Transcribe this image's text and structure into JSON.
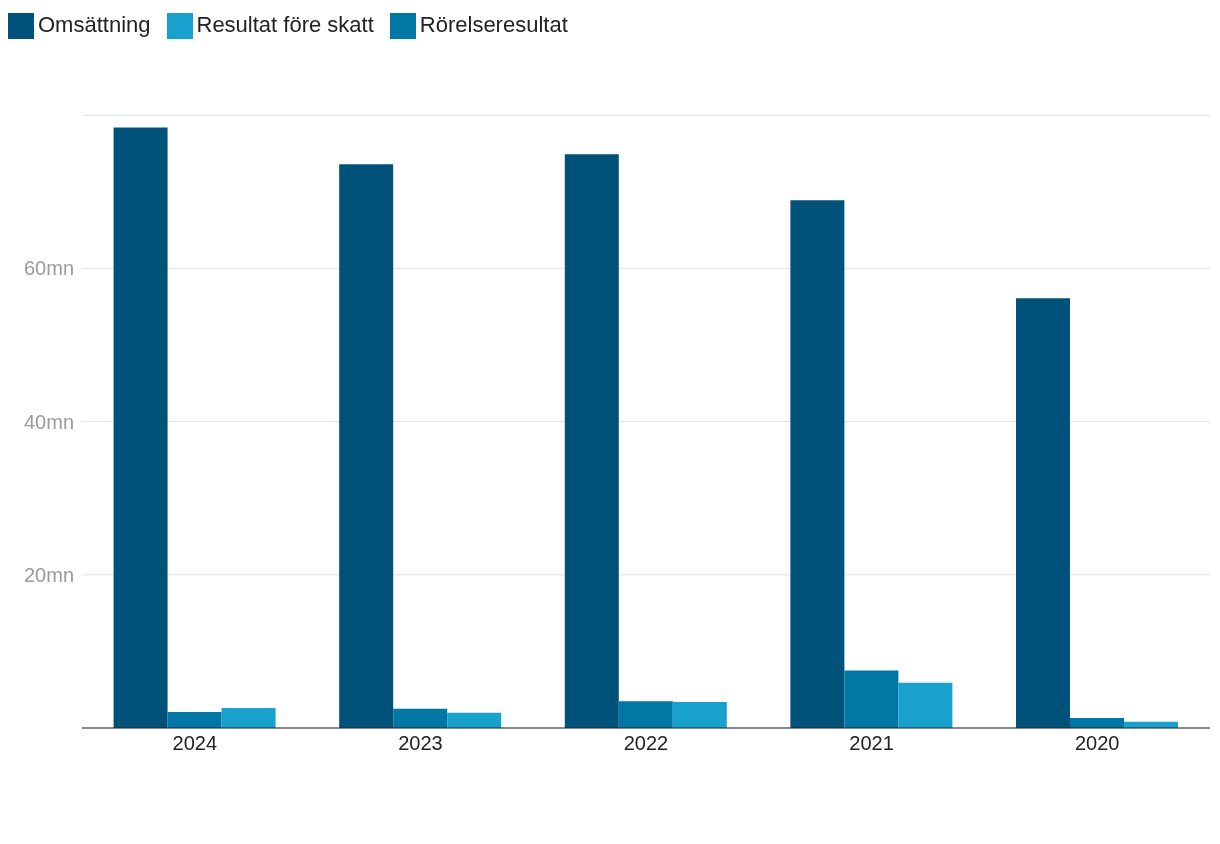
{
  "chart_data": {
    "type": "bar",
    "categories": [
      "2024",
      "2023",
      "2022",
      "2021",
      "2020"
    ],
    "series": [
      {
        "name": "Omsättning",
        "color": "#00527a",
        "values": [
          78.4,
          73.6,
          74.9,
          68.9,
          56.1
        ]
      },
      {
        "name": "Rörelseresultat",
        "color": "#0077a5",
        "values": [
          2.1,
          2.5,
          3.5,
          7.5,
          1.3
        ]
      },
      {
        "name": "Resultat före skatt",
        "color": "#18a1cd",
        "values": [
          2.6,
          2.0,
          3.4,
          5.9,
          0.8
        ]
      }
    ],
    "ylim": [
      0,
      80
    ],
    "yticks": [
      {
        "value": 20,
        "label": "20mn"
      },
      {
        "value": 40,
        "label": "40mn"
      },
      {
        "value": 60,
        "label": "60mn"
      }
    ],
    "grid": "y",
    "legend": "top left"
  }
}
